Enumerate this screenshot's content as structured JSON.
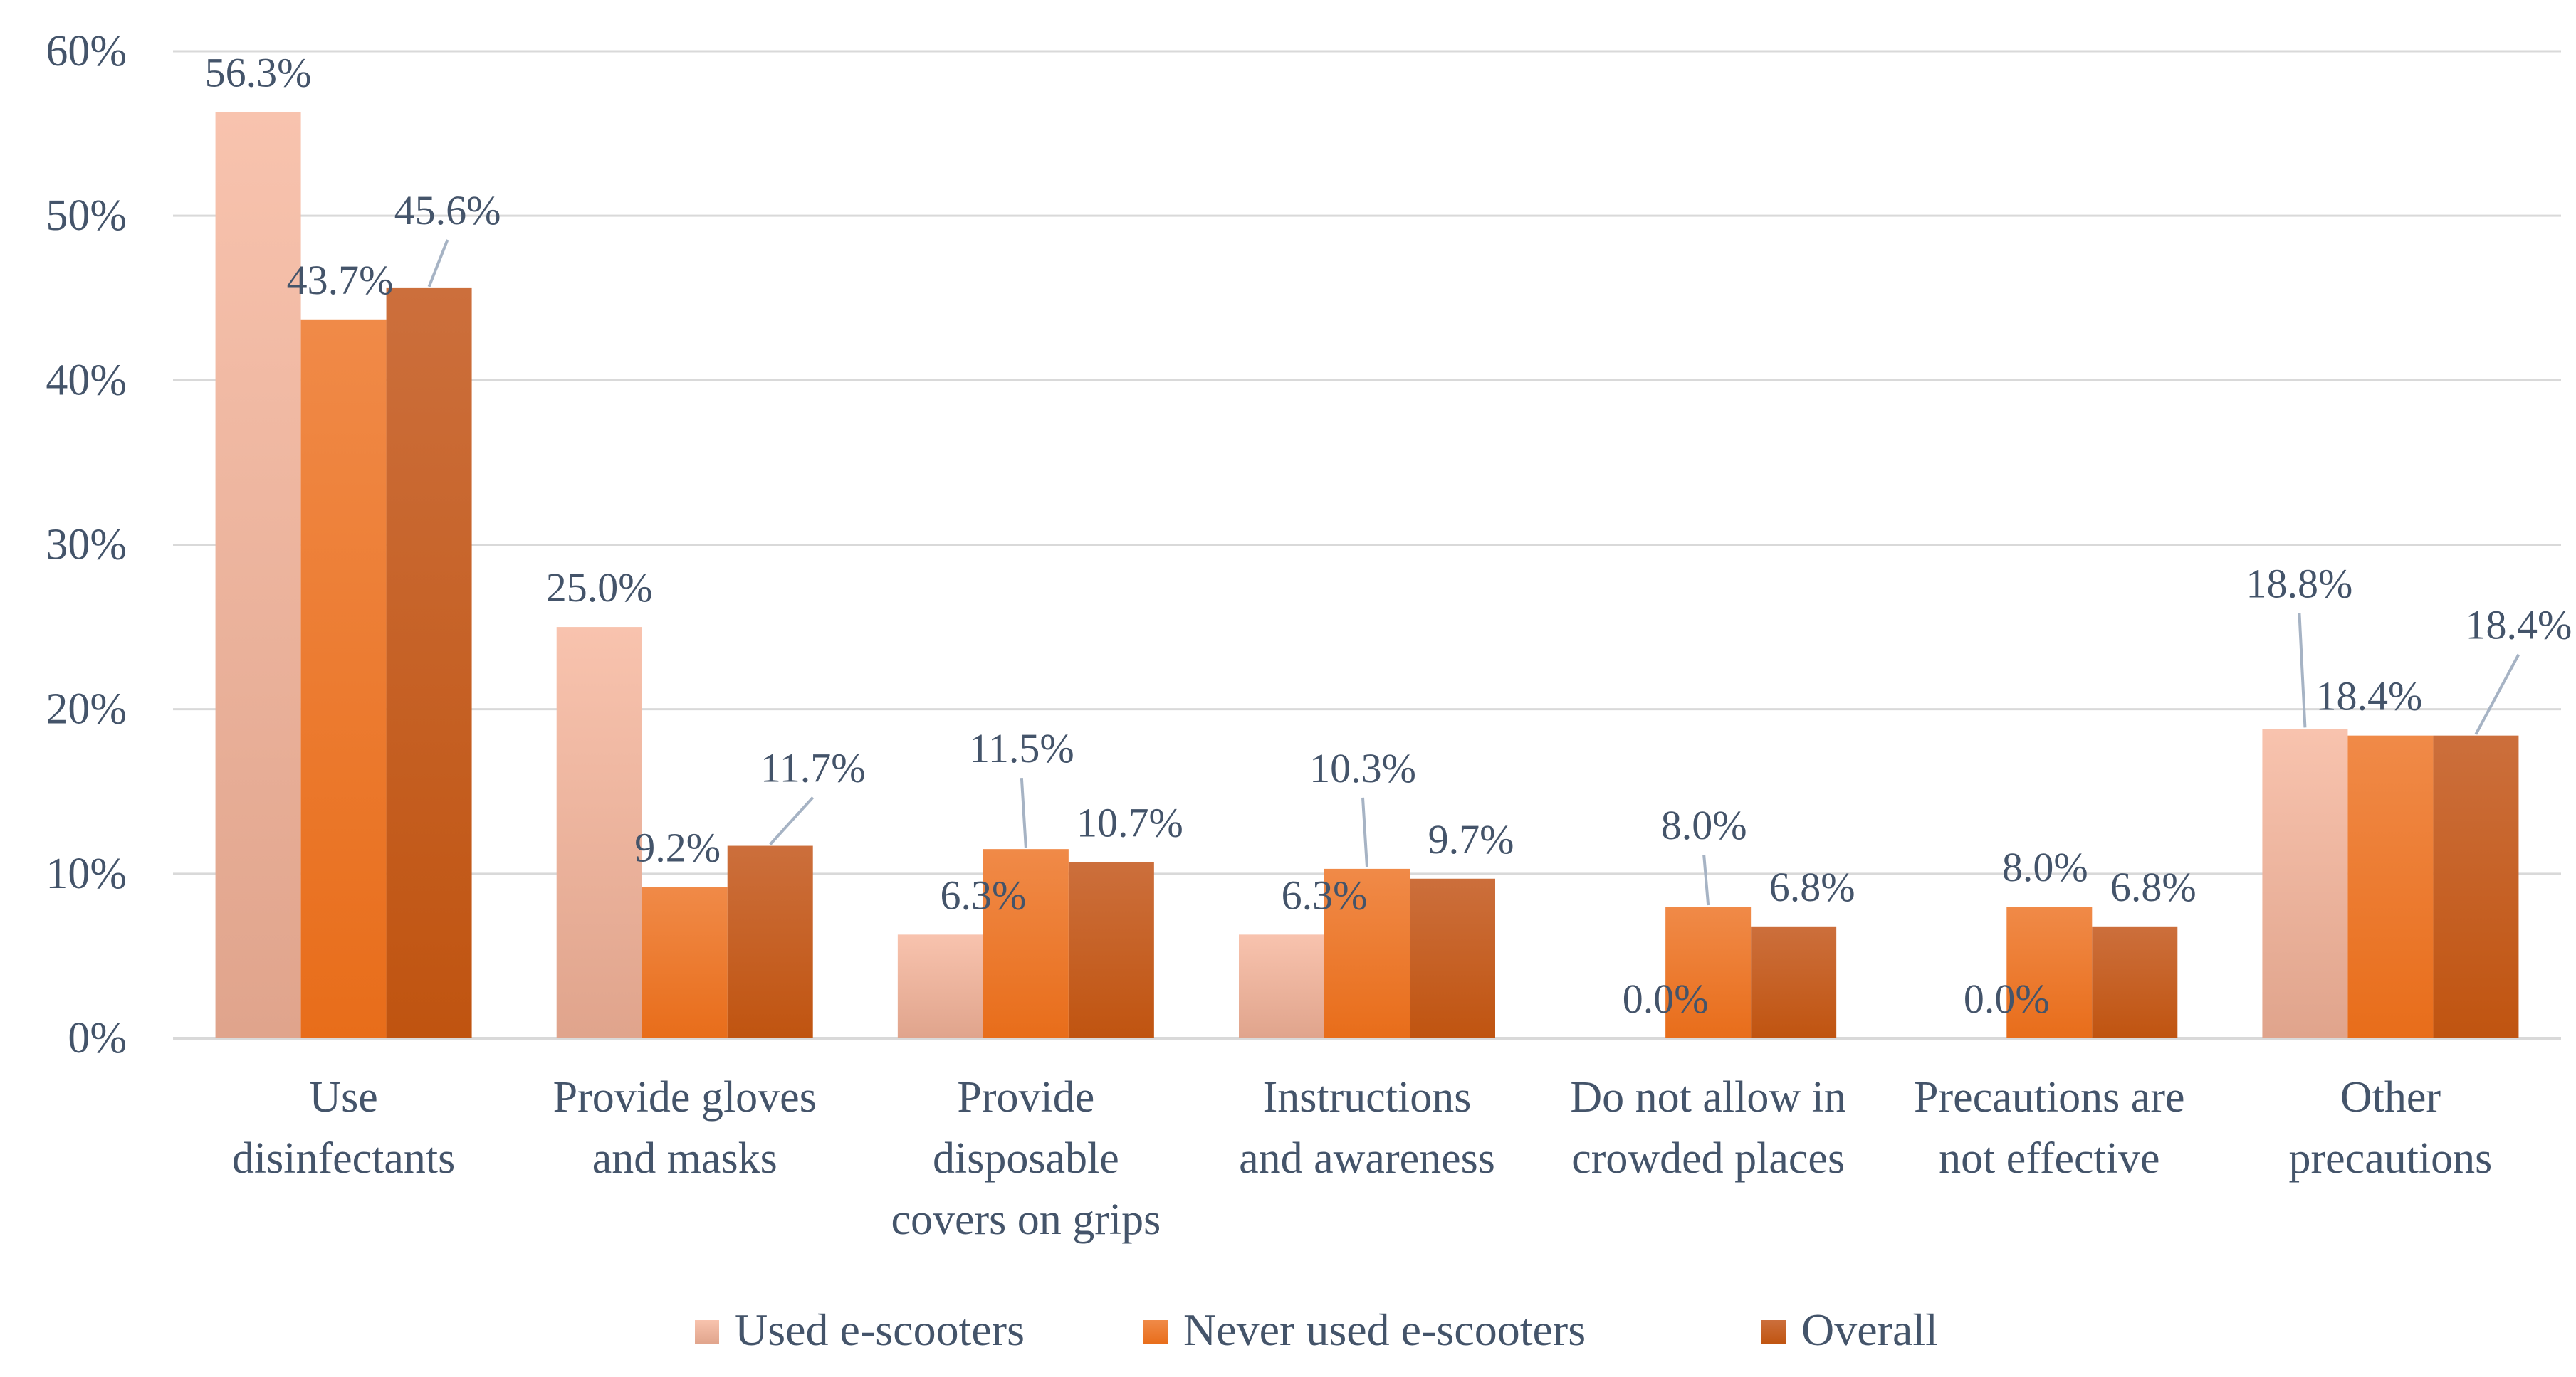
{
  "chart_data": {
    "type": "bar",
    "title": "",
    "xlabel": "",
    "ylabel": "",
    "ylim": [
      0,
      60
    ],
    "yticks": [
      "0%",
      "10%",
      "20%",
      "30%",
      "40%",
      "50%",
      "60%"
    ],
    "grid": true,
    "legend_position": "bottom",
    "categories": [
      [
        "Use",
        "disinfectants"
      ],
      [
        "Provide gloves",
        "and masks"
      ],
      [
        "Provide",
        "disposable",
        "covers on grips"
      ],
      [
        "Instructions",
        "and awareness"
      ],
      [
        "Do not allow in",
        "crowded places"
      ],
      [
        "Precautions are",
        "not effective"
      ],
      [
        "Other",
        "precautions"
      ]
    ],
    "series": [
      {
        "name": "Used e-scooters",
        "color": "#f5c0ad",
        "values": [
          56.3,
          25.0,
          6.3,
          6.3,
          0.0,
          0.0,
          18.8
        ],
        "labels": [
          "56.3%",
          "25.0%",
          "6.3%",
          "6.3%",
          "0.0%",
          "0.0%",
          "18.8%"
        ]
      },
      {
        "name": "Never used e-scooters",
        "color": "#ed7d31",
        "values": [
          43.7,
          9.2,
          11.5,
          10.3,
          8.0,
          8.0,
          18.4
        ],
        "labels": [
          "43.7%",
          "9.2%",
          "11.5%",
          "10.3%",
          "8.0%",
          "8.0%",
          "18.4%"
        ]
      },
      {
        "name": "Overall",
        "color": "#c55a11",
        "values": [
          45.6,
          11.7,
          10.7,
          9.7,
          6.8,
          6.8,
          18.4
        ],
        "labels": [
          "45.6%",
          "11.7%",
          "10.7%",
          "9.7%",
          "6.8%",
          "6.8%",
          "18.4%"
        ]
      }
    ]
  }
}
